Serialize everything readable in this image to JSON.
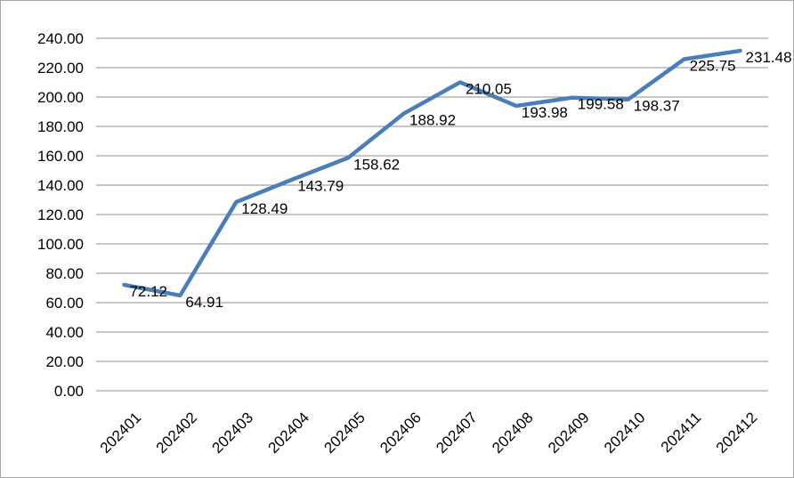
{
  "chart_data": {
    "type": "line",
    "title": "",
    "xlabel": "",
    "ylabel": "",
    "categories": [
      "202401",
      "202402",
      "202403",
      "202404",
      "202405",
      "202406",
      "202407",
      "202408",
      "202409",
      "202410",
      "202411",
      "202412"
    ],
    "series": [
      {
        "values": [
          72.12,
          64.91,
          128.49,
          143.79,
          158.62,
          188.92,
          210.05,
          193.98,
          199.58,
          198.37,
          225.75,
          231.48
        ],
        "labels": [
          "72.12",
          "64.91",
          "128.49",
          "143.79",
          "158.62",
          "188.92",
          "210.05",
          "193.98",
          "199.58",
          "198.37",
          "225.75",
          "231.48"
        ],
        "color": "#4a7ebb"
      }
    ],
    "y_ticks": [
      "0.00",
      "20.00",
      "40.00",
      "60.00",
      "80.00",
      "100.00",
      "120.00",
      "140.00",
      "160.00",
      "180.00",
      "200.00",
      "220.00",
      "240.00"
    ],
    "ylim": [
      0,
      240
    ],
    "grid": true,
    "legend": "none",
    "colors": {
      "line": "#4a7ebb",
      "grid": "#8c8c8c",
      "border": "#a6a6a6"
    }
  }
}
